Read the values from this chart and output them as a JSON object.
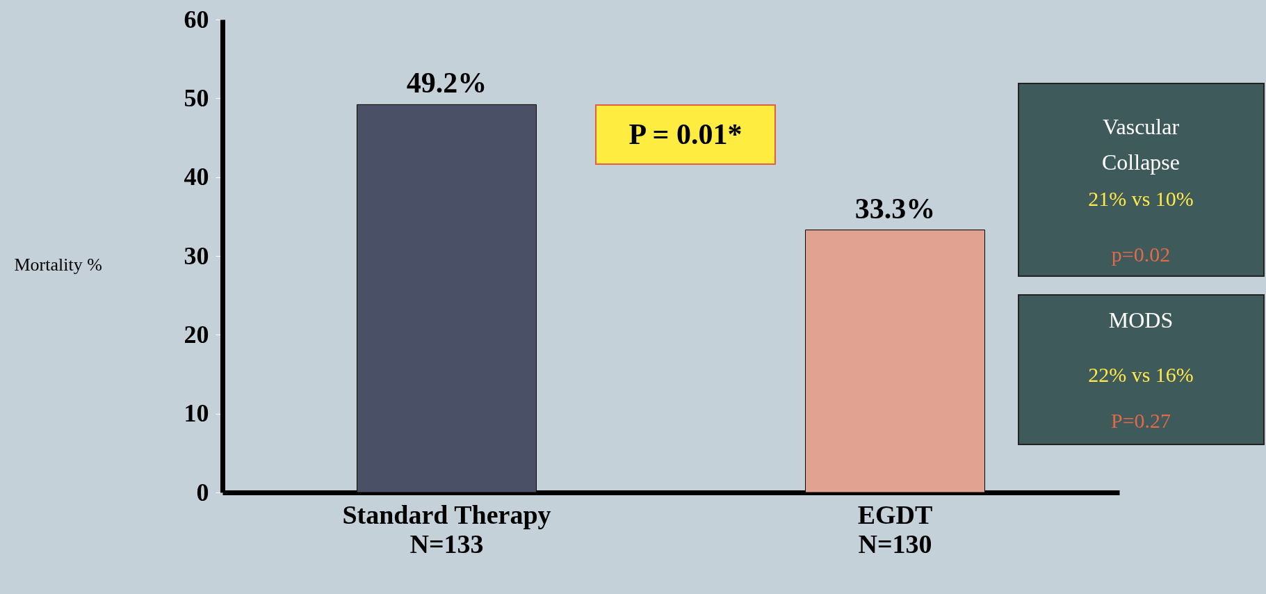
{
  "chart_data": {
    "type": "bar",
    "ylabel": "Mortality %",
    "categories": [
      "Standard Therapy\nN=133",
      "EGDT\nN=130"
    ],
    "values": [
      49.2,
      33.3
    ],
    "colors": [
      "#4a5066",
      "#e2a291"
    ],
    "value_labels": [
      "49.2%",
      "33.3%"
    ],
    "ylim": [
      0,
      60
    ],
    "yticks": [
      0,
      10,
      20,
      30,
      40,
      50,
      60
    ],
    "grid": false,
    "annotations": [
      "P = 0.01*",
      "Vascular\nCollapse",
      "21% vs 10%",
      "p=0.02",
      "MODS",
      "22% vs 16%",
      "P=0.27"
    ]
  }
}
